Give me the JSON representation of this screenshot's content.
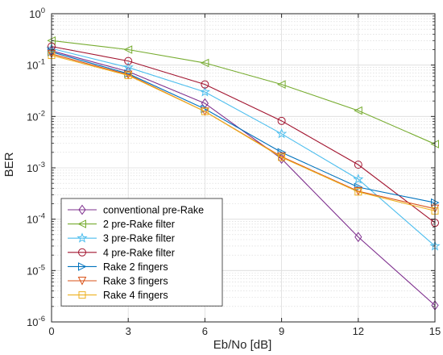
{
  "chart_data": {
    "type": "line",
    "title": "",
    "xlabel": "Eb/No [dB]",
    "ylabel": "BER",
    "x": [
      0,
      3,
      6,
      9,
      12,
      15
    ],
    "xticks": [
      "0",
      "3",
      "6",
      "9",
      "12",
      "15"
    ],
    "xlim": [
      0,
      15
    ],
    "y_scale": "log",
    "ylim": [
      1e-06,
      1
    ],
    "yticks": [
      {
        "base": "10",
        "exp": "0"
      },
      {
        "base": "10",
        "exp": "-1"
      },
      {
        "base": "10",
        "exp": "-2"
      },
      {
        "base": "10",
        "exp": "-3"
      },
      {
        "base": "10",
        "exp": "-4"
      },
      {
        "base": "10",
        "exp": "-5"
      },
      {
        "base": "10",
        "exp": "-6"
      }
    ],
    "grid": true,
    "legend_position": "bottom-left",
    "series": [
      {
        "name": "conventional pre-Rake",
        "marker": "diamond",
        "color": "#7e2f8e",
        "values": [
          0.19,
          0.075,
          0.018,
          0.0015,
          4.5e-05,
          2.1e-06
        ]
      },
      {
        "name": "2 pre-Rake filter",
        "marker": "triangle-left",
        "color": "#77ac30",
        "values": [
          0.3,
          0.2,
          0.11,
          0.042,
          0.013,
          0.0029
        ]
      },
      {
        "name": "3 pre-Rake filter",
        "marker": "star",
        "color": "#4dbeee",
        "values": [
          0.21,
          0.09,
          0.03,
          0.0046,
          0.0006,
          3e-05
        ]
      },
      {
        "name": "4 pre-Rake filter",
        "marker": "circle",
        "color": "#a2142f",
        "values": [
          0.23,
          0.12,
          0.042,
          0.0082,
          0.00115,
          8.5e-05
        ]
      },
      {
        "name": "Rake 2 fingers",
        "marker": "triangle-right",
        "color": "#0072bd",
        "values": [
          0.18,
          0.068,
          0.014,
          0.002,
          0.00042,
          0.00021
        ]
      },
      {
        "name": "Rake 3 fingers",
        "marker": "triangle-down",
        "color": "#d95319",
        "values": [
          0.165,
          0.065,
          0.0125,
          0.00165,
          0.00035,
          0.00016
        ]
      },
      {
        "name": "Rake 4 fingers",
        "marker": "square",
        "color": "#edb120",
        "values": [
          0.155,
          0.063,
          0.0125,
          0.0016,
          0.00034,
          0.000145
        ]
      }
    ]
  }
}
